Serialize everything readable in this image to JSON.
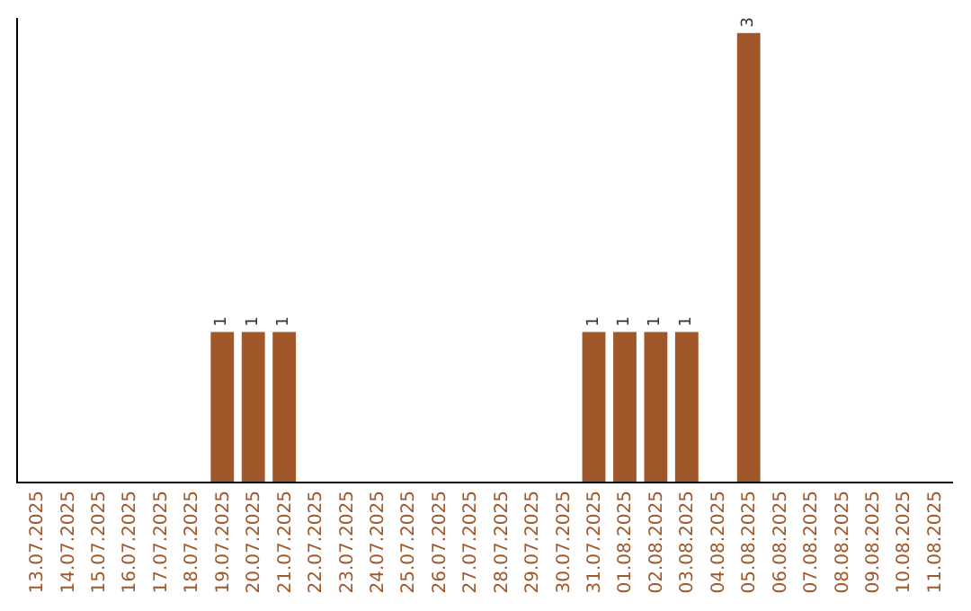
{
  "chart_data": {
    "type": "bar",
    "categories": [
      "13.07.2025",
      "14.07.2025",
      "15.07.2025",
      "16.07.2025",
      "17.07.2025",
      "18.07.2025",
      "19.07.2025",
      "20.07.2025",
      "21.07.2025",
      "22.07.2025",
      "23.07.2025",
      "24.07.2025",
      "25.07.2025",
      "26.07.2025",
      "27.07.2025",
      "28.07.2025",
      "29.07.2025",
      "30.07.2025",
      "31.07.2025",
      "01.08.2025",
      "02.08.2025",
      "03.08.2025",
      "04.08.2025",
      "05.08.2025",
      "06.08.2025",
      "07.08.2025",
      "08.08.2025",
      "09.08.2025",
      "10.08.2025",
      "11.08.2025"
    ],
    "values": [
      0,
      0,
      0,
      0,
      0,
      0,
      1,
      1,
      1,
      0,
      0,
      0,
      0,
      0,
      0,
      0,
      0,
      0,
      1,
      1,
      1,
      1,
      0,
      3,
      0,
      0,
      0,
      0,
      0,
      0
    ],
    "value_labels": [
      null,
      null,
      null,
      null,
      null,
      null,
      "1",
      "1",
      "1",
      null,
      null,
      null,
      null,
      null,
      null,
      null,
      null,
      null,
      "1",
      "1",
      "1",
      "1",
      null,
      "3",
      null,
      null,
      null,
      null,
      null,
      null
    ],
    "color": "#a0572a",
    "ylim": [
      0,
      3.1
    ],
    "tick_labels": "x"
  }
}
